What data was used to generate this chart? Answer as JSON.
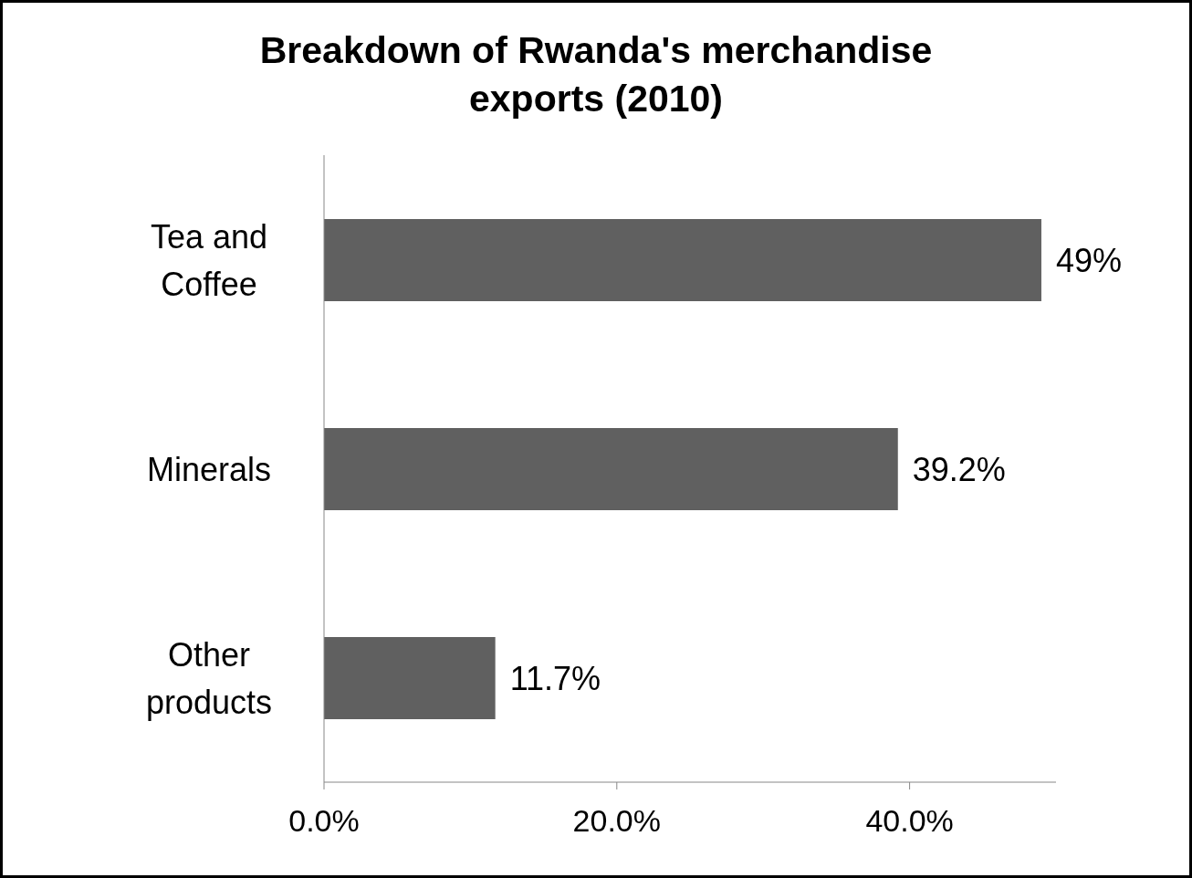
{
  "chart_data": {
    "type": "bar",
    "orientation": "horizontal",
    "title": "Breakdown of Rwanda's merchandise exports  (2010)",
    "categories": [
      "Tea and Coffee",
      "Minerals",
      "Other products"
    ],
    "values": [
      49,
      39.2,
      11.7
    ],
    "value_labels": [
      "49%",
      "39.2%",
      "11.7%"
    ],
    "color": "#606060",
    "xlim": [
      0,
      50
    ],
    "xticks": [
      {
        "value": 0,
        "label": "0.0%"
      },
      {
        "value": 20,
        "label": "20.0%"
      },
      {
        "value": 40,
        "label": "40.0%"
      }
    ],
    "grid": false,
    "legend": false
  }
}
